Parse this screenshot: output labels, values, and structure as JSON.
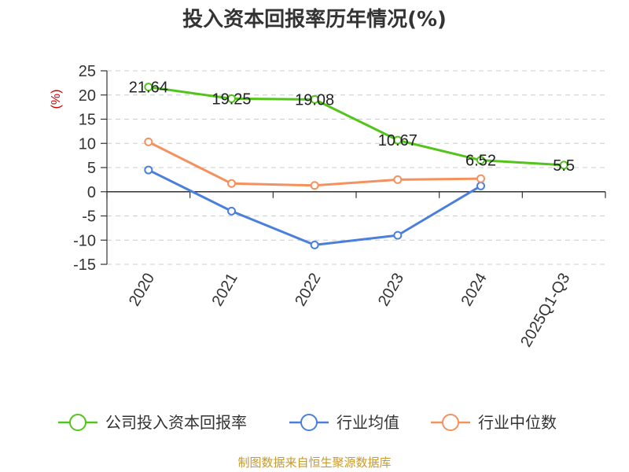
{
  "chart_data": {
    "type": "line",
    "title": "投入资本回报率历年情况(%)",
    "ylabel": "(%)",
    "ylabel_color": "#cc0000",
    "categories": [
      "2020",
      "2021",
      "2022",
      "2023",
      "2024",
      "2025Q1-Q3"
    ],
    "ylim": [
      -15,
      25
    ],
    "yticks": [
      25,
      20,
      15,
      10,
      5,
      0,
      -5,
      -10,
      -15
    ],
    "grid": true,
    "legend_position": "bottom",
    "series": [
      {
        "name": "公司投入资本回报率",
        "color": "#52c41a",
        "values": [
          21.64,
          19.25,
          19.08,
          10.67,
          6.52,
          5.5
        ],
        "labels": [
          "21.64",
          "19.25",
          "19.08",
          "10.67",
          "6.52",
          "5.5"
        ]
      },
      {
        "name": "行业均值",
        "color": "#4a7fdc",
        "values": [
          4.5,
          -4.0,
          -11.0,
          -9.0,
          1.2,
          null
        ]
      },
      {
        "name": "行业中位数",
        "color": "#f4915e",
        "values": [
          10.3,
          1.7,
          1.3,
          2.5,
          2.7,
          null
        ]
      }
    ]
  },
  "footer": {
    "source": "制图数据来自恒生聚源数据库",
    "source_color": "#c89a2a"
  }
}
